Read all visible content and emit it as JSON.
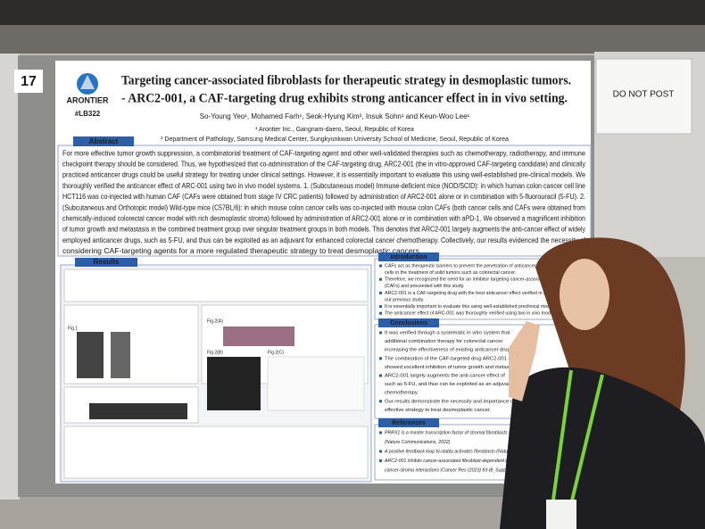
{
  "sign": "DO NOT POST",
  "board_number": "17",
  "logo": {
    "name": "ARONTIER",
    "booth": "#LB322"
  },
  "title": [
    "Targeting cancer-associated fibroblasts for therapeutic strategy in desmoplastic tumors.",
    "- ARC2-001, a CAF-targeting drug exhibits strong anticancer effect in in vivo setting."
  ],
  "authors": "So-Young Yeo¹, Mohamed Farh¹, Seok-Hyung Kim², Insuk Sohn¹ and Keun-Woo Lee¹",
  "affiliations": [
    "¹ Arontier Inc., Gangnam-daero, Seoul, Republic of Korea",
    "² Department of Pathology, Samsung Medical Center, Sungkyunkwan University School of Medicine, Seoul, Republic of Korea"
  ],
  "abstract": {
    "heading": "Abstract",
    "lines": [
      "For more effective tumor growth suppression, a combinatorial treatment of CAF-targeting agent and other well-validated therapies such as chemotherapy, radiotherapy, and immune",
      "checkpoint therapy should be considered. Thus, we hypothesized that co-administration of the CAF-targeting drug, ARC2-001 (the in vitro-approved CAF-targeting candidate) and clinically",
      "practiced anticancer drugs could be useful strategy for treating under clinical settings. However, it is essentially important to evaluate this using well-established pre-clinical models. We",
      "thoroughly verified the anticancer effect of ARC-001 using two in vivo model systems. 1. (Subcutaneous model) Immune-deficient mice (NOD/SCID): in which human colon cancer cell line",
      "HCT116 was co-injected with human CAF (CAFs were obtained from stage IV CRC patients) followed by administration of ARC2-001 alone or in combination with 5-fluorouracil (5-FU). 2.",
      "(Subcutaneous and Orthotopic model) Wild-type mice (C57BL/6): in which mouse colon cancer cells was co-injected with mouse colon CAFs (both cancer cells and CAFs were obtained from",
      "chemically-induced colorectal cancer model with rich desmoplastic stroma) followed by administration of ARC2-001 alone or in combination with aPD-1. We observed a magnificent inhibition",
      "of tumor growth and metastasis in the combined treatment group over singular treatment groups in both models. This denotes that ARC2-001 largely augments the anti-cancer effect of widely",
      "employed anticancer drugs, such as 5-FU, and thus can be exploited as an adjuvant for enhanced colorectal cancer chemotherapy. Collectively, our results evidenced the necessity of",
      "considering CAF-targeting agents for a more regulated therapeutic strategy to treat desmoplastic cancers."
    ]
  },
  "results": {
    "heading": "Results",
    "labels": [
      "Fig.1",
      "Fig.2(A)",
      "Fig.2(B)",
      "Fig.2(C)"
    ]
  },
  "introduction": {
    "heading": "Introduction",
    "lines": [
      "CAFs act as therapeutic barriers to prevent the penetration of anticancer drugs and immune",
      "cells in the treatment of solid tumors such as colorectal cancer.",
      "Therefore, we recognized the need for an inhibitor targeting cancer-associated fibroblasts",
      "(CAFs) and proceeded with this study.",
      "ARC2-001 is a CAF-targeting drug with the best anticancer effect verified in in vitro system in",
      "our previous study.",
      "It is essentially important to evaluate this using well-established preclinical models.",
      "The anticancer effect of ARC-001 was thoroughly verified using two in vivo model system"
    ]
  },
  "conclusions": {
    "heading": "Conclusions",
    "lines": [
      "It was verified through a systematic in vitro system that",
      "additional combination therapy for colorectal cancer",
      "increasing the effectiveness of existing anticancer drugs.",
      "The combination of the CAF-targeted drug ARC2-001 and",
      "showed excellent inhibition of tumor growth and metastasis",
      "ARC2-001 largely augments the anti-cancer effect of",
      "such as 5-FU, and thus can be exploited as an adjuvant",
      "chemotherapy.",
      "Our results demonstrate the necessity and importance of",
      "effective strategy to treat desmoplastic cancer."
    ]
  },
  "references": {
    "heading": "References",
    "lines": [
      "PRRX1 is a master transcription factor of stromal fibroblasts for myofibroblastic",
      "(Nature Communications, 2022)",
      "A positive feedback loop bi-stably activates fibroblasts (Nature Communications",
      "ARC2-001 inhibits cancer-associated fibroblast-dependent cancer stem cell",
      "cancer-stroma interactions (Cancer Res (2023) 83 (8_Supplement): LB283)"
    ]
  }
}
